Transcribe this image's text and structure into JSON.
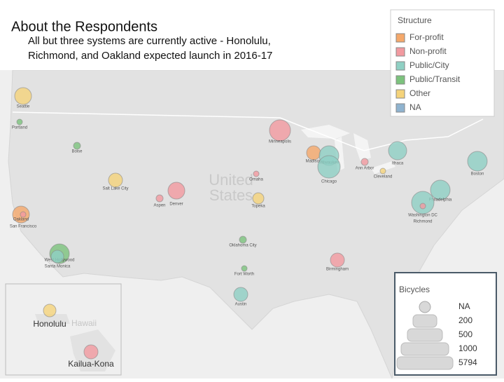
{
  "header": {
    "title": "About the Respondents",
    "subtitle": [
      "All but three systems are currently active - Honolulu,",
      "Richmond, and Oakland expected launch in 2016-17"
    ]
  },
  "map": {
    "country_label": [
      "United",
      "States"
    ],
    "inset_label": "Hawaii",
    "cities": [
      {
        "label": "Seattle",
        "color": "#f5d37a"
      },
      {
        "label": "Portland",
        "color": "#7cc37d"
      },
      {
        "label": "Boise",
        "color": "#7cc37d"
      },
      {
        "label": "Salt Lake City",
        "color": "#f5d37a"
      },
      {
        "label": "Oakland",
        "color": "#f5a86a"
      },
      {
        "label": "San Francisco",
        "color": "#f29aa0"
      },
      {
        "label": "West Hollywood",
        "color": "#7cc37d"
      },
      {
        "label": "Santa Monica",
        "color": "#8fd0c4"
      },
      {
        "label": "Minneapolis",
        "color": "#f29aa0"
      },
      {
        "label": "Madison",
        "color": "#f5a86a"
      },
      {
        "label": "Milwaukee",
        "color": "#8fd0c4"
      },
      {
        "label": "Chicago",
        "color": "#8fd0c4"
      },
      {
        "label": "Ann Arbor",
        "color": "#f29aa0"
      },
      {
        "label": "Cleveland",
        "color": "#f5d37a"
      },
      {
        "label": "Ithaca",
        "color": "#8fd0c4"
      },
      {
        "label": "Boston",
        "color": "#8fd0c4"
      },
      {
        "label": "Philadelphia",
        "color": "#8fd0c4"
      },
      {
        "label": "Washington DC",
        "color": "#8fd0c4"
      },
      {
        "label": "Richmond",
        "color": "#f29aa0"
      },
      {
        "label": "Omaha",
        "color": "#f29aa0"
      },
      {
        "label": "Denver",
        "color": "#f29aa0"
      },
      {
        "label": "Aspen",
        "color": "#f29aa0"
      },
      {
        "label": "Topeka",
        "color": "#f5d37a"
      },
      {
        "label": "Oklahoma City",
        "color": "#7cc37d"
      },
      {
        "label": "Fort Worth",
        "color": "#7cc37d"
      },
      {
        "label": "Austin",
        "color": "#8fd0c4"
      },
      {
        "label": "Birmingham",
        "color": "#f29aa0"
      },
      {
        "label": "Honolulu",
        "color": "#f5d37a"
      },
      {
        "label": "Kailua-Kona",
        "color": "#f29aa0"
      }
    ]
  },
  "legend_structure": {
    "title": "Structure",
    "items": [
      {
        "label": "For-profit",
        "color": "#f5a86a"
      },
      {
        "label": "Non-profit",
        "color": "#f29aa0"
      },
      {
        "label": "Public/City",
        "color": "#8fd0c4"
      },
      {
        "label": "Public/Transit",
        "color": "#7cc37d"
      },
      {
        "label": "Other",
        "color": "#f5d37a"
      },
      {
        "label": "NA",
        "color": "#8fb3cf"
      }
    ]
  },
  "legend_bicycles": {
    "title": "Bicycles",
    "items": [
      "NA",
      200,
      500,
      1000,
      5794
    ]
  }
}
